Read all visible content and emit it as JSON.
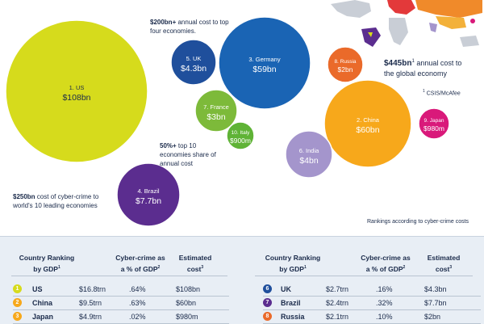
{
  "chart_data": {
    "type": "bubble",
    "title": "",
    "series_unit": "annual cost of cyber-crime",
    "bubbles": [
      {
        "rank": "1.",
        "name": "US",
        "value": "$108bn",
        "cost_bn": 108,
        "color": "#d6db1c"
      },
      {
        "rank": "2.",
        "name": "China",
        "value": "$60bn",
        "cost_bn": 60,
        "color": "#f7a81b"
      },
      {
        "rank": "3.",
        "name": "Germany",
        "value": "$59bn",
        "cost_bn": 59,
        "color": "#1a64b4"
      },
      {
        "rank": "4.",
        "name": "Brazil",
        "value": "$7.7bn",
        "cost_bn": 7.7,
        "color": "#5b2d8f"
      },
      {
        "rank": "5.",
        "name": "UK",
        "value": "$4.3bn",
        "cost_bn": 4.3,
        "color": "#1f4f9c"
      },
      {
        "rank": "6.",
        "name": "India",
        "value": "$4bn",
        "cost_bn": 4,
        "color": "#a495cc"
      },
      {
        "rank": "7.",
        "name": "France",
        "value": "$3bn",
        "cost_bn": 3,
        "color": "#7dba3a"
      },
      {
        "rank": "8.",
        "name": "Russia",
        "value": "$2bn",
        "cost_bn": 2,
        "color": "#ea6a2a"
      },
      {
        "rank": "9.",
        "name": "Japan",
        "value": "$980m",
        "cost_bn": 0.98,
        "color": "#d9197a"
      },
      {
        "rank": "10.",
        "name": "Italy",
        "value": "$900m",
        "cost_bn": 0.9,
        "color": "#5fb336"
      }
    ]
  },
  "annotations": {
    "top_four_bold": "$200bn+",
    "top_four_text": " annual cost to top",
    "top_four_text2": "four economies.",
    "share_bold": "50%+",
    "share_text": " top 10",
    "share_text2": "economies share of",
    "share_text3": "annual cost",
    "leading_bold": "$250bn",
    "leading_text": " cost of cyber-crime to",
    "leading_text2": "world's 10 leading economies",
    "global_bold": "$445bn",
    "global_sup": "1",
    "global_text": " annual cost to",
    "global_text2": "the global economy",
    "source_sup": "1",
    "source": " CSIS/McAfee",
    "rankings_note": "Rankings according to cyber-crime costs"
  },
  "table": {
    "headers": {
      "country_ranking_1": "Country Ranking",
      "country_ranking_2": "by GDP",
      "cyber_1": "Cyber-crime as",
      "cyber_2": "a % of GDP",
      "cost_1": "Estimated",
      "cost_2": "cost",
      "sup1": "1",
      "sup2": "2",
      "sup3": "3"
    },
    "left_rows": [
      {
        "rank": "1",
        "country": "US",
        "gdp": "$16.8trn",
        "pct": ".64%",
        "cost": "$108bn",
        "color": "#d6db1c"
      },
      {
        "rank": "2",
        "country": "China",
        "gdp": "$9.5trn",
        "pct": ".63%",
        "cost": "$60bn",
        "color": "#f7a81b"
      },
      {
        "rank": "3",
        "country": "Japan",
        "gdp": "$4.9trn",
        "pct": ".02%",
        "cost": "$980m",
        "color": "#f7a81b"
      }
    ],
    "right_rows": [
      {
        "rank": "6",
        "country": "UK",
        "gdp": "$2.7trn",
        "pct": ".16%",
        "cost": "$4.3bn",
        "color": "#1f4f9c"
      },
      {
        "rank": "7",
        "country": "Brazil",
        "gdp": "$2.4trn",
        "pct": ".32%",
        "cost": "$7.7bn",
        "color": "#5b2d8f"
      },
      {
        "rank": "8",
        "country": "Russia",
        "gdp": "$2.1trn",
        "pct": ".10%",
        "cost": "$2bn",
        "color": "#ea6a2a"
      }
    ]
  }
}
